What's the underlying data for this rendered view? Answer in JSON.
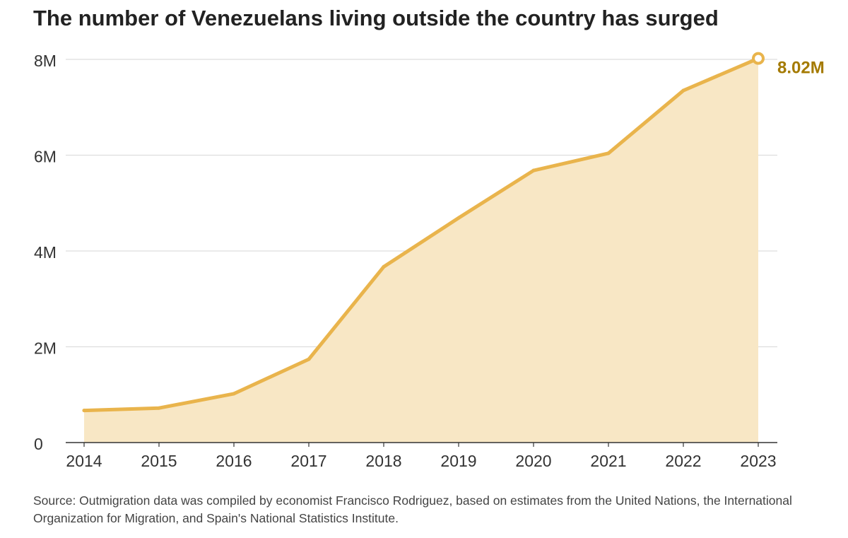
{
  "title": "The number of Venezuelans living outside the country has surged",
  "source": "Source: Outmigration data was compiled by economist Francisco Rodriguez, based on estimates from the United Nations, the International Organization for Migration, and Spain's National Statistics Institute.",
  "colors": {
    "line": "#e9b44c",
    "area": "#f8e7c5",
    "label": "#a47a00",
    "grid": "#dddddd",
    "axis": "#333333"
  },
  "chart_data": {
    "type": "area",
    "title": "The number of Venezuelans living outside the country has surged",
    "x": [
      2014,
      2015,
      2016,
      2017,
      2018,
      2019,
      2020,
      2021,
      2022,
      2023
    ],
    "x_tick_labels": [
      "2014",
      "2015",
      "2016",
      "2017",
      "2018",
      "2019",
      "2020",
      "2021",
      "2022",
      "2023"
    ],
    "values": [
      0.67,
      0.72,
      1.02,
      1.74,
      3.67,
      4.69,
      5.68,
      6.04,
      7.35,
      8.02
    ],
    "units": "millions",
    "ylim": [
      0,
      8
    ],
    "y_ticks": [
      0,
      2,
      4,
      6,
      8
    ],
    "y_tick_labels": [
      "0",
      "2M",
      "4M",
      "6M",
      "8M"
    ],
    "grid": true,
    "annotation": {
      "x": 2023,
      "text": "8.02M"
    }
  }
}
